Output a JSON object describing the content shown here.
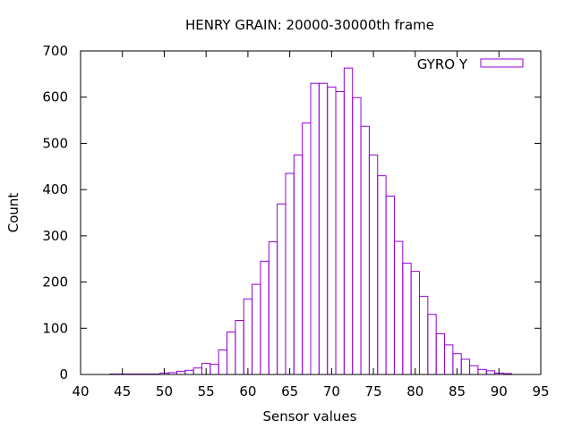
{
  "chart_data": {
    "type": "bar",
    "title": "HENRY GRAIN: 20000-30000th frame",
    "xlabel": "Sensor values",
    "ylabel": "Count",
    "xlim": [
      40,
      95
    ],
    "ylim": [
      0,
      700
    ],
    "xticks": [
      40,
      45,
      50,
      55,
      60,
      65,
      70,
      75,
      80,
      85,
      90,
      95
    ],
    "yticks": [
      0,
      100,
      200,
      300,
      400,
      500,
      600,
      700
    ],
    "bin_width": 1,
    "grid": false,
    "legend_position": "top-right",
    "bar_fill": "none",
    "series": [
      {
        "name": "GYRO Y",
        "color": "#9400d3",
        "bins": [
          44,
          45,
          46,
          47,
          48,
          49,
          50,
          51,
          52,
          53,
          54,
          55,
          56,
          57,
          58,
          59,
          60,
          61,
          62,
          63,
          64,
          65,
          66,
          67,
          68,
          69,
          70,
          71,
          72,
          73,
          74,
          75,
          76,
          77,
          78,
          79,
          80,
          81,
          82,
          83,
          84,
          85,
          86,
          87,
          88,
          89,
          90,
          91
        ],
        "values": [
          1,
          1,
          1,
          1,
          1,
          1,
          3,
          4,
          7,
          9,
          14,
          24,
          22,
          53,
          92,
          117,
          163,
          195,
          245,
          287,
          369,
          435,
          475,
          544,
          630,
          630,
          622,
          612,
          663,
          599,
          537,
          475,
          430,
          386,
          288,
          241,
          223,
          169,
          130,
          88,
          64,
          45,
          33,
          19,
          11,
          8,
          3,
          2
        ]
      }
    ]
  }
}
